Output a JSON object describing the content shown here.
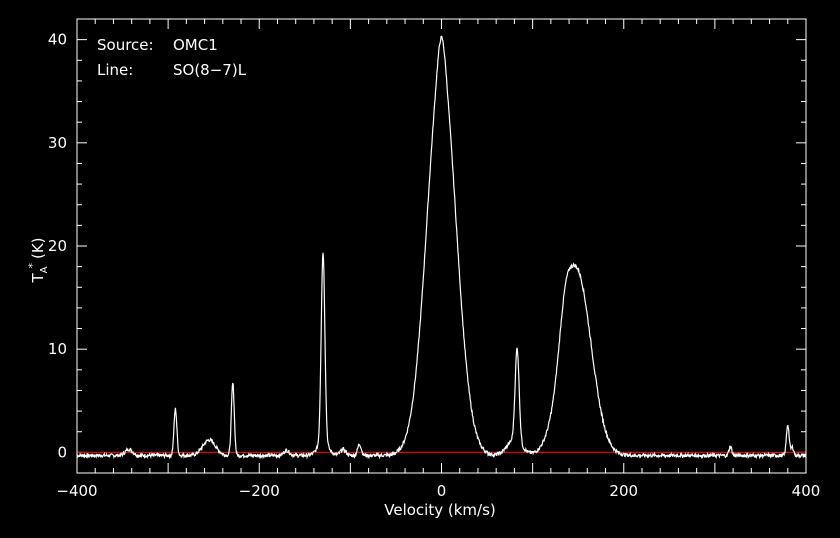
{
  "chart_data": {
    "type": "line",
    "xlabel": "Velocity (km/s)",
    "ylabel": {
      "base": "T",
      "sub": "A",
      "sup": "*",
      "unit": "(K)"
    },
    "xlim": [
      -400,
      400
    ],
    "ylim": [
      -2,
      42
    ],
    "x_ticks": [
      -400,
      -200,
      0,
      200,
      400
    ],
    "x_tick_labels": [
      "−400",
      "−200",
      "0",
      "200",
      "400"
    ],
    "y_ticks": [
      0,
      10,
      20,
      30,
      40
    ],
    "y_tick_labels": [
      "0",
      "10",
      "20",
      "30",
      "40"
    ],
    "annotations": [
      {
        "key": "Source:",
        "value": "OMC1"
      },
      {
        "key": "Line:",
        "value": "SO(8−7)L"
      }
    ],
    "baseline": {
      "y": 0,
      "color": "#e00000"
    },
    "colors": {
      "background": "#000000",
      "line": "#ffffff",
      "frame": "#ffffff"
    },
    "series": [
      {
        "components": [
          {
            "center": 0,
            "amp": 37.5,
            "sigma": 16
          },
          {
            "center": 0,
            "amp": 3.0,
            "sigma": 4
          },
          {
            "center": 148,
            "amp": 18.0,
            "sigma": 16
          },
          {
            "center": 135,
            "amp": 3.0,
            "sigma": 6
          },
          {
            "center": 83,
            "amp": 9.0,
            "sigma": 2.2
          },
          {
            "center": 80,
            "amp": 1.5,
            "sigma": 8
          },
          {
            "center": -130,
            "amp": 18.5,
            "sigma": 2.0
          },
          {
            "center": -130,
            "amp": 1.2,
            "sigma": 6
          },
          {
            "center": -229,
            "amp": 7.0,
            "sigma": 1.6
          },
          {
            "center": -292,
            "amp": 4.5,
            "sigma": 1.6
          },
          {
            "center": -255,
            "amp": 1.5,
            "sigma": 7
          },
          {
            "center": -343,
            "amp": 0.6,
            "sigma": 4
          },
          {
            "center": -90,
            "amp": 1.1,
            "sigma": 2
          },
          {
            "center": -108,
            "amp": 0.6,
            "sigma": 3
          },
          {
            "center": 317,
            "amp": 0.9,
            "sigma": 1.5
          },
          {
            "center": 380,
            "amp": 3.0,
            "sigma": 1.5
          },
          {
            "center": 385,
            "amp": 0.8,
            "sigma": 1.5
          },
          {
            "center": -170,
            "amp": 0.5,
            "sigma": 3
          }
        ],
        "continuum": -0.3
      }
    ]
  }
}
